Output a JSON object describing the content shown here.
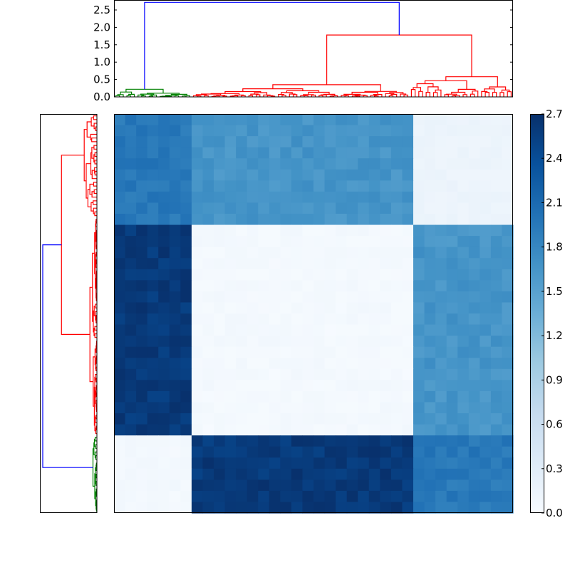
{
  "chart_data": {
    "type": "heatmap",
    "title": "",
    "description": "Clustered distance matrix heatmap with dendrograms (top and left) and a colorbar",
    "colormap": "Blues",
    "clusters": [
      {
        "name": "green",
        "color": "#008000",
        "leaves": 21,
        "order_top": 0
      },
      {
        "name": "red-A",
        "color": "#ff0000",
        "leaves": 59,
        "order_top": 1
      },
      {
        "name": "red-B",
        "color": "#ff0000",
        "leaves": 28,
        "order_top": 2
      }
    ],
    "block_matrix": {
      "row_order": [
        "red-B",
        "red-A",
        "green"
      ],
      "col_order": [
        "green",
        "red-A",
        "red-B"
      ],
      "values": [
        [
          1.95,
          1.65,
          0.15
        ],
        [
          2.6,
          0.05,
          1.65
        ],
        [
          0.06,
          2.6,
          1.95
        ]
      ]
    },
    "top_dendrogram": {
      "ylim": [
        0,
        2.85
      ],
      "yticks": [
        "0.0",
        "0.5",
        "1.0",
        "1.5",
        "2.0",
        "2.5"
      ],
      "root_height": 2.72,
      "red_merge_height": 1.78,
      "red_A_height": 0.35,
      "red_B_height": 0.58,
      "green_height": 0.22,
      "link_color_root": "#0000ff"
    },
    "left_dendrogram": {
      "orientation": "left",
      "root_height": 2.72,
      "red_merge_height": 1.78
    },
    "colorbar": {
      "min": 0.0,
      "max": 2.7,
      "ticks": [
        "0.0",
        "0.3",
        "0.6",
        "0.9",
        "1.2",
        "1.5",
        "1.8",
        "2.1",
        "2.4",
        "2.7"
      ]
    },
    "xlabel": "",
    "ylabel": ""
  }
}
